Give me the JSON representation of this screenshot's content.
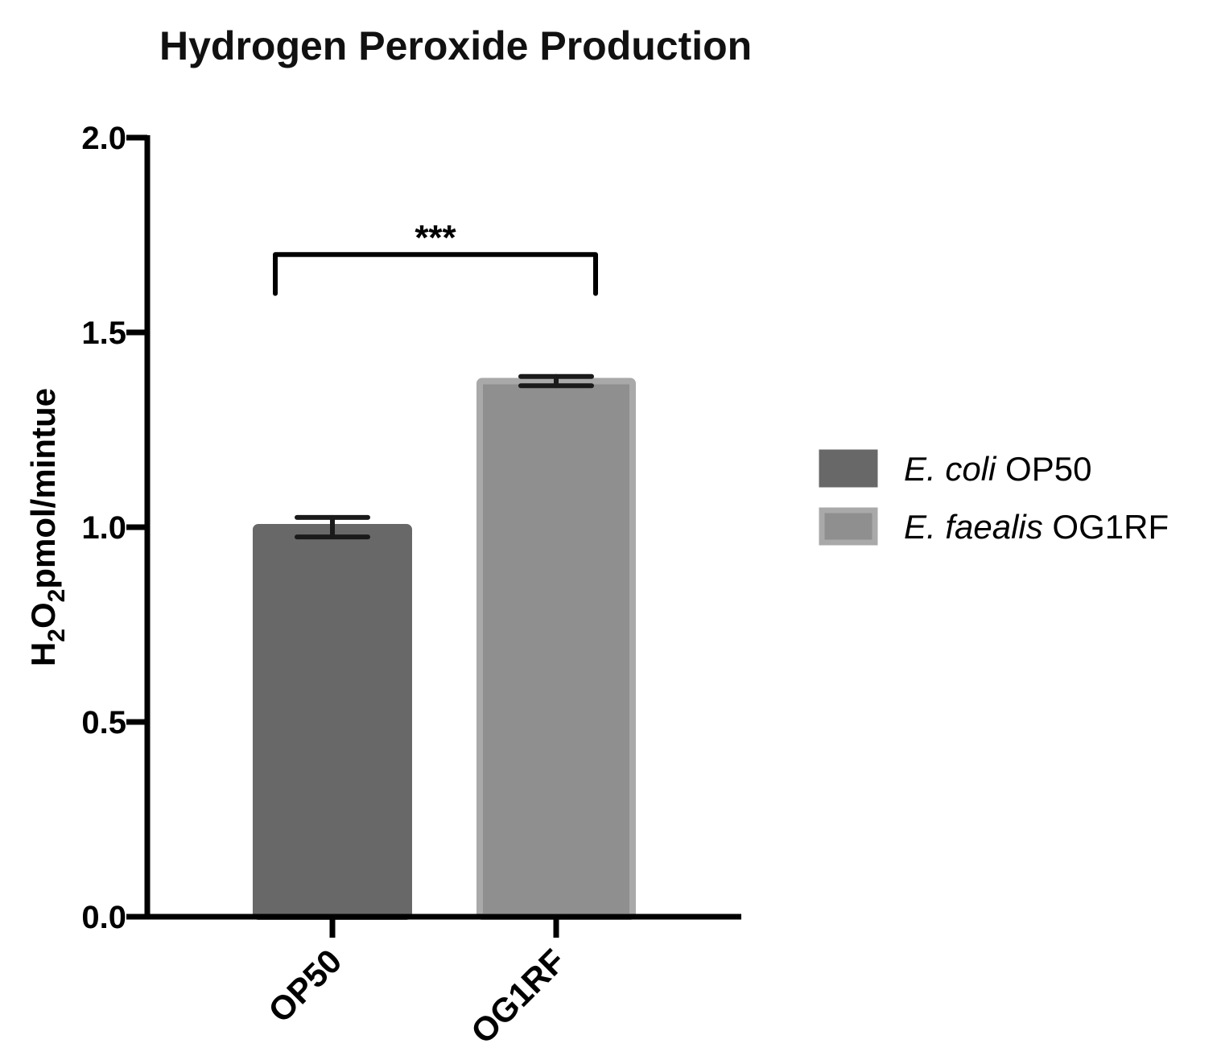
{
  "chart_data": {
    "type": "bar",
    "title": "Hydrogen Peroxide Production",
    "ylabel": {
      "parts": [
        {
          "text": "H",
          "sub": false
        },
        {
          "text": "2",
          "sub": true
        },
        {
          "text": "O",
          "sub": false
        },
        {
          "text": "2",
          "sub": true
        },
        {
          "text": "pmol/mintue",
          "sub": false
        }
      ]
    },
    "xlabel": "",
    "ylim": [
      0,
      2.0
    ],
    "yticks": [
      {
        "value": 0.0,
        "label": "0.0"
      },
      {
        "value": 0.5,
        "label": "0.5"
      },
      {
        "value": 1.0,
        "label": "1.0"
      },
      {
        "value": 1.5,
        "label": "1.5"
      },
      {
        "value": 2.0,
        "label": "2.0"
      }
    ],
    "categories": [
      "OP50",
      "OG1RF"
    ],
    "bars": [
      {
        "category": "OP50",
        "value": 1.0,
        "error": 0.025,
        "color": "#686868",
        "edge": "#686868"
      },
      {
        "category": "OG1RF",
        "value": 1.375,
        "error": 0.012,
        "color": "#8f8f8f",
        "edge": "#a9a9a9"
      }
    ],
    "significance": {
      "label": "***",
      "from": "OP50",
      "to": "OG1RF",
      "y": 1.7,
      "drop_to": 1.6
    },
    "grid": false,
    "legend_position": "right",
    "legend": [
      {
        "italic": "E. coli",
        "normal": " OP50",
        "color": "#686868",
        "edge": "#686868"
      },
      {
        "italic": "E. faealis",
        "normal": " OG1RF",
        "color": "#8f8f8f",
        "edge": "#a9a9a9"
      }
    ]
  }
}
